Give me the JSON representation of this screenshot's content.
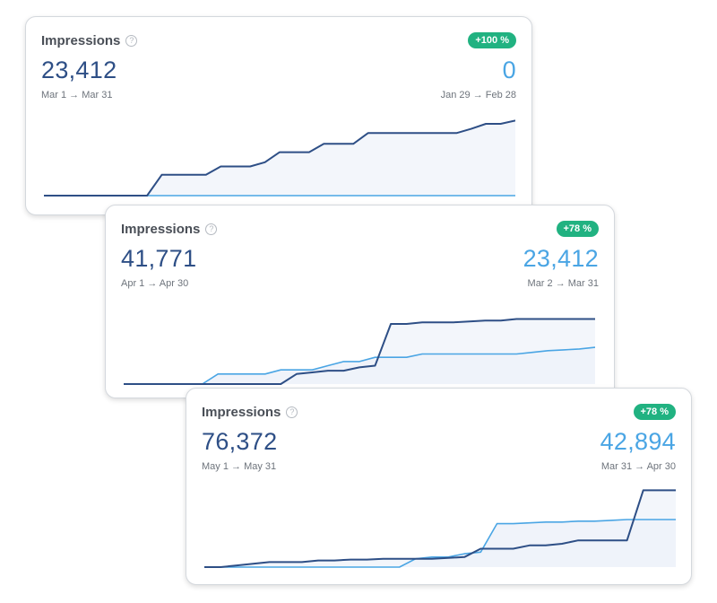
{
  "colors": {
    "primary_line": "#2e4f86",
    "compare_line": "#4aa5e4",
    "area_fill": "#eef2f9",
    "badge_green": "#21b281"
  },
  "cards": [
    {
      "title": "Impressions",
      "help_icon": "?",
      "change_badge": "+100 %",
      "primary_value": "23,412",
      "compare_value": "0",
      "primary_range": "Mar 1 → Mar 31",
      "compare_range": "Jan 29 → Feb 28",
      "chart_data": {
        "type": "line",
        "title": "Impressions",
        "ylim": [
          0,
          100
        ],
        "series": [
          {
            "name": "Mar 1 → Mar 31",
            "values": [
              0,
              0,
              0,
              0,
              0,
              0,
              0,
              0,
              25,
              25,
              25,
              25,
              35,
              35,
              35,
              40,
              52,
              52,
              52,
              62,
              62,
              62,
              75,
              75,
              75,
              75,
              75,
              75,
              75,
              80,
              86,
              86,
              90
            ]
          },
          {
            "name": "Jan 29 → Feb 28",
            "values": [
              0,
              0,
              0,
              0,
              0,
              0,
              0,
              0,
              0,
              0,
              0,
              0,
              0,
              0,
              0,
              0,
              0,
              0,
              0,
              0,
              0,
              0,
              0,
              0,
              0,
              0,
              0,
              0,
              0,
              0,
              0,
              0,
              0
            ]
          }
        ]
      }
    },
    {
      "title": "Impressions",
      "help_icon": "?",
      "change_badge": "+78 %",
      "primary_value": "41,771",
      "compare_value": "23,412",
      "primary_range": "Apr 1 → Apr 30",
      "compare_range": "Mar 2 → Mar 31",
      "chart_data": {
        "type": "line",
        "title": "Impressions",
        "ylim": [
          0,
          100
        ],
        "series": [
          {
            "name": "Apr 1 → Apr 30",
            "values": [
              0,
              0,
              0,
              0,
              0,
              0,
              0,
              0,
              0,
              0,
              0,
              12,
              14,
              16,
              16,
              20,
              22,
              72,
              72,
              74,
              74,
              74,
              75,
              76,
              76,
              78,
              78,
              78,
              78,
              78,
              78
            ]
          },
          {
            "name": "Mar 2 → Mar 31",
            "values": [
              0,
              0,
              0,
              0,
              0,
              0,
              12,
              12,
              12,
              12,
              17,
              17,
              17,
              22,
              27,
              27,
              32,
              32,
              32,
              36,
              36,
              36,
              36,
              36,
              36,
              36,
              38,
              40,
              41,
              42,
              44
            ]
          }
        ]
      }
    },
    {
      "title": "Impressions",
      "help_icon": "?",
      "change_badge": "+78 %",
      "primary_value": "76,372",
      "compare_value": "42,894",
      "primary_range": "May 1 → May 31",
      "compare_range": "Mar 31 → Apr 30",
      "chart_data": {
        "type": "line",
        "title": "Impressions",
        "ylim": [
          0,
          100
        ],
        "series": [
          {
            "name": "May 1 → May 31",
            "values": [
              0,
              0,
              2,
              4,
              6,
              6,
              6,
              8,
              8,
              9,
              9,
              10,
              10,
              10,
              10,
              11,
              12,
              22,
              22,
              22,
              26,
              26,
              28,
              32,
              32,
              32,
              32,
              92,
              92,
              92
            ]
          },
          {
            "name": "Mar 31 → Apr 30",
            "values": [
              0,
              0,
              0,
              0,
              0,
              0,
              0,
              0,
              0,
              0,
              0,
              0,
              0,
              10,
              12,
              12,
              16,
              18,
              52,
              52,
              53,
              54,
              54,
              55,
              55,
              56,
              57,
              57,
              57,
              57
            ]
          }
        ]
      }
    }
  ]
}
